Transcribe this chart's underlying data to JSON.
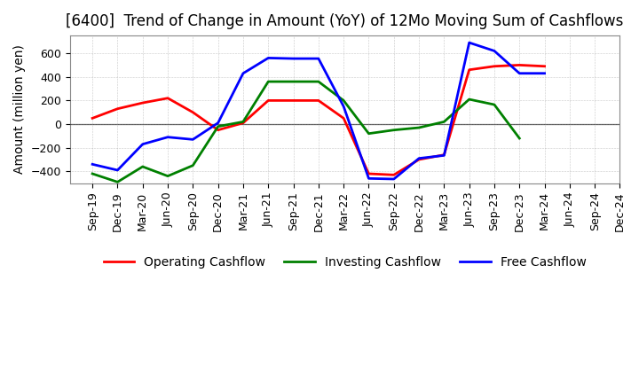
{
  "title": "[6400]  Trend of Change in Amount (YoY) of 12Mo Moving Sum of Cashflows",
  "ylabel": "Amount (million yen)",
  "x_labels": [
    "Sep-19",
    "Dec-19",
    "Mar-20",
    "Jun-20",
    "Sep-20",
    "Dec-20",
    "Mar-21",
    "Jun-21",
    "Sep-21",
    "Dec-21",
    "Mar-22",
    "Jun-22",
    "Sep-22",
    "Dec-22",
    "Mar-23",
    "Jun-23",
    "Sep-23",
    "Dec-23",
    "Mar-24",
    "Jun-24",
    "Sep-24",
    "Dec-24"
  ],
  "operating": [
    50,
    130,
    180,
    220,
    100,
    -50,
    10,
    200,
    200,
    200,
    50,
    -420,
    -430,
    -300,
    -260,
    460,
    490,
    500,
    490,
    null,
    null,
    null
  ],
  "investing": [
    -420,
    -490,
    -360,
    -440,
    -350,
    -20,
    20,
    360,
    360,
    360,
    200,
    -80,
    -50,
    -30,
    20,
    210,
    165,
    -120,
    null,
    null,
    null,
    null
  ],
  "free": [
    -340,
    -390,
    -170,
    -110,
    -130,
    10,
    430,
    560,
    555,
    555,
    150,
    -460,
    -465,
    -290,
    -265,
    690,
    620,
    430,
    430,
    null,
    null,
    null
  ],
  "operating_color": "#ff0000",
  "investing_color": "#008000",
  "free_color": "#0000ff",
  "ylim": [
    -500,
    750
  ],
  "yticks": [
    -400,
    -200,
    0,
    200,
    400,
    600
  ],
  "bg_color": "#ffffff",
  "grid_color": "#999999",
  "title_fontsize": 12,
  "label_fontsize": 10,
  "tick_fontsize": 9,
  "linewidth": 2.0
}
